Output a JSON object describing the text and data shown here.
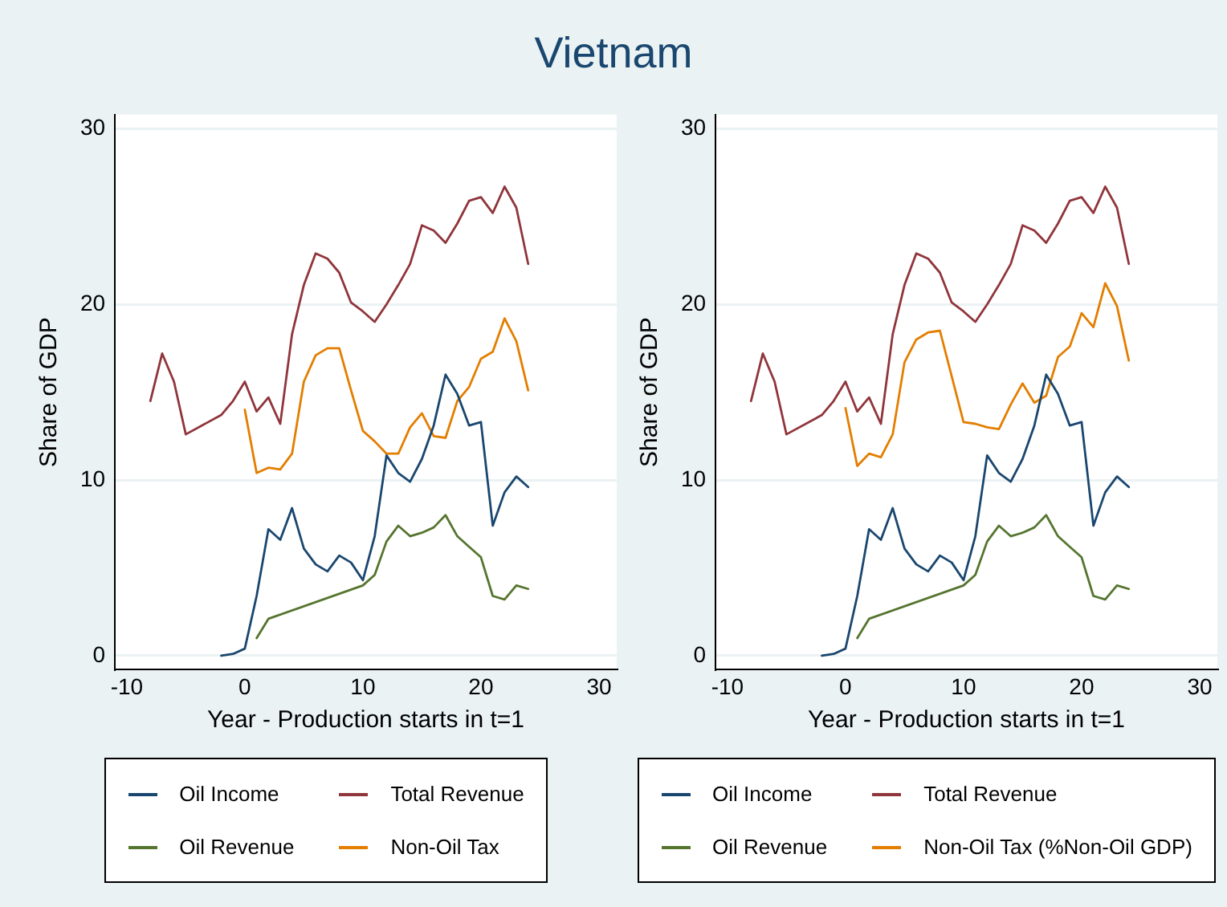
{
  "chart_data": [
    {
      "type": "line",
      "title": "Vietnam",
      "xlabel": "Year - Production starts in t=1",
      "ylabel": "Share of GDP",
      "xlim": [
        -11,
        31.5
      ],
      "ylim": [
        -0.8,
        30.8
      ],
      "xticks": [
        -10,
        0,
        10,
        20,
        30
      ],
      "yticks": [
        0,
        10,
        20,
        30
      ],
      "grid": "y",
      "legend": "bottom",
      "series": [
        {
          "name": "Oil Income",
          "color": "#1a476f",
          "x": [
            -2,
            -1,
            0,
            1,
            2,
            3,
            4,
            5,
            6,
            7,
            8,
            9,
            10,
            11,
            12,
            13,
            14,
            15,
            16,
            17,
            18,
            19,
            20,
            21,
            22,
            23,
            24
          ],
          "values": [
            0.0,
            0.1,
            0.4,
            3.4,
            7.2,
            6.6,
            8.4,
            6.1,
            5.2,
            4.8,
            5.7,
            5.3,
            4.3,
            6.8,
            11.4,
            10.4,
            9.9,
            11.2,
            13.1,
            16.0,
            14.9,
            13.1,
            13.3,
            7.4,
            9.3,
            10.2,
            9.6
          ]
        },
        {
          "name": "Total Revenue",
          "color": "#90353b",
          "x": [
            -8,
            -7,
            -6,
            -5,
            -2,
            -1,
            0,
            1,
            2,
            3,
            4,
            5,
            6,
            7,
            8,
            9,
            10,
            11,
            12,
            13,
            14,
            15,
            16,
            17,
            18,
            19,
            20,
            21,
            22,
            23,
            24
          ],
          "values": [
            14.5,
            17.2,
            15.6,
            12.6,
            13.7,
            14.5,
            15.6,
            13.9,
            14.7,
            13.2,
            18.3,
            21.1,
            22.9,
            22.6,
            21.8,
            20.1,
            19.6,
            19.0,
            20.0,
            21.1,
            22.3,
            24.5,
            24.2,
            23.5,
            24.6,
            25.9,
            26.1,
            25.2,
            26.7,
            25.5,
            22.3
          ]
        },
        {
          "name": "Oil Revenue",
          "color": "#55752f",
          "x": [
            1,
            2,
            10,
            11,
            12,
            13,
            14,
            15,
            16,
            17,
            18,
            19,
            20,
            21,
            22,
            23,
            24
          ],
          "values": [
            1.0,
            2.1,
            4.0,
            4.6,
            6.5,
            7.4,
            6.8,
            7.0,
            7.3,
            8.0,
            6.8,
            6.2,
            5.6,
            3.4,
            3.2,
            4.0,
            3.8
          ]
        },
        {
          "name": "Non-Oil Tax",
          "color": "#e37e00",
          "x": [
            0,
            1,
            2,
            3,
            4,
            5,
            6,
            7,
            8,
            9,
            10,
            11,
            12,
            13,
            14,
            15,
            16,
            17,
            18,
            19,
            20,
            21,
            22,
            23,
            24
          ],
          "values": [
            14.0,
            10.4,
            10.7,
            10.6,
            11.5,
            15.6,
            17.1,
            17.5,
            17.5,
            15.1,
            12.8,
            12.2,
            11.5,
            11.5,
            13.0,
            13.8,
            12.5,
            12.4,
            14.5,
            15.3,
            16.9,
            17.3,
            19.2,
            17.9,
            15.1
          ]
        }
      ]
    },
    {
      "type": "line",
      "xlabel": "Year - Production starts in t=1",
      "ylabel": "Share of GDP",
      "xlim": [
        -11,
        31.5
      ],
      "ylim": [
        -0.8,
        30.8
      ],
      "xticks": [
        -10,
        0,
        10,
        20,
        30
      ],
      "yticks": [
        0,
        10,
        20,
        30
      ],
      "grid": "y",
      "legend": "bottom",
      "series": [
        {
          "name": "Oil Income",
          "color": "#1a476f",
          "x": [
            -2,
            -1,
            0,
            1,
            2,
            3,
            4,
            5,
            6,
            7,
            8,
            9,
            10,
            11,
            12,
            13,
            14,
            15,
            16,
            17,
            18,
            19,
            20,
            21,
            22,
            23,
            24
          ],
          "values": [
            0.0,
            0.1,
            0.4,
            3.4,
            7.2,
            6.6,
            8.4,
            6.1,
            5.2,
            4.8,
            5.7,
            5.3,
            4.3,
            6.8,
            11.4,
            10.4,
            9.9,
            11.2,
            13.1,
            16.0,
            14.9,
            13.1,
            13.3,
            7.4,
            9.3,
            10.2,
            9.6
          ]
        },
        {
          "name": "Total Revenue",
          "color": "#90353b",
          "x": [
            -8,
            -7,
            -6,
            -5,
            -2,
            -1,
            0,
            1,
            2,
            3,
            4,
            5,
            6,
            7,
            8,
            9,
            10,
            11,
            12,
            13,
            14,
            15,
            16,
            17,
            18,
            19,
            20,
            21,
            22,
            23,
            24
          ],
          "values": [
            14.5,
            17.2,
            15.6,
            12.6,
            13.7,
            14.5,
            15.6,
            13.9,
            14.7,
            13.2,
            18.3,
            21.1,
            22.9,
            22.6,
            21.8,
            20.1,
            19.6,
            19.0,
            20.0,
            21.1,
            22.3,
            24.5,
            24.2,
            23.5,
            24.6,
            25.9,
            26.1,
            25.2,
            26.7,
            25.5,
            22.3
          ]
        },
        {
          "name": "Oil Revenue",
          "color": "#55752f",
          "x": [
            1,
            2,
            10,
            11,
            12,
            13,
            14,
            15,
            16,
            17,
            18,
            19,
            20,
            21,
            22,
            23,
            24
          ],
          "values": [
            1.0,
            2.1,
            4.0,
            4.6,
            6.5,
            7.4,
            6.8,
            7.0,
            7.3,
            8.0,
            6.8,
            6.2,
            5.6,
            3.4,
            3.2,
            4.0,
            3.8
          ]
        },
        {
          "name": "Non-Oil Tax (%Non-Oil GDP)",
          "color": "#e37e00",
          "x": [
            0,
            1,
            2,
            3,
            4,
            5,
            6,
            7,
            8,
            9,
            10,
            11,
            12,
            13,
            14,
            15,
            16,
            17,
            18,
            19,
            20,
            21,
            22,
            23,
            24
          ],
          "values": [
            14.1,
            10.8,
            11.5,
            11.3,
            12.6,
            16.7,
            18.0,
            18.4,
            18.5,
            15.9,
            13.3,
            13.2,
            13.0,
            12.9,
            14.3,
            15.5,
            14.4,
            14.8,
            17.0,
            17.6,
            19.5,
            18.7,
            21.2,
            19.9,
            16.8
          ]
        }
      ]
    }
  ]
}
